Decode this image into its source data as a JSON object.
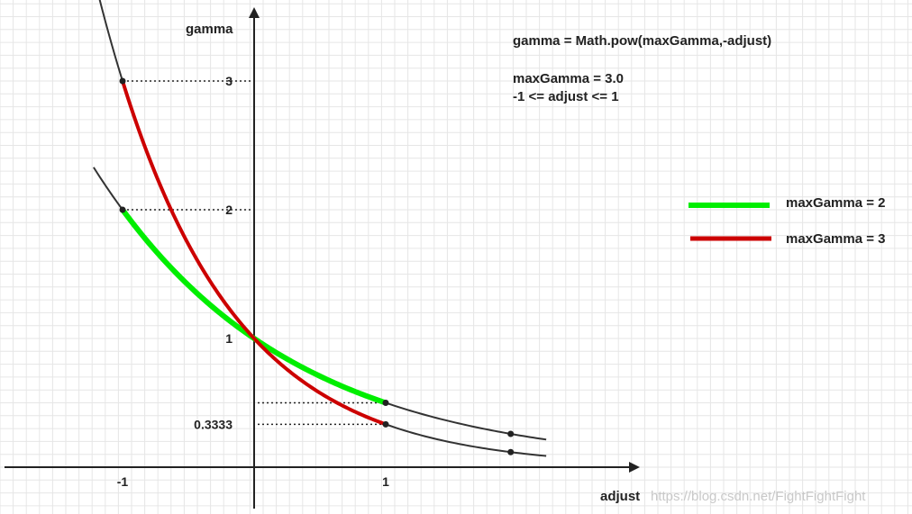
{
  "chart_data": {
    "type": "line",
    "xlabel": "adjust",
    "ylabel": "gamma",
    "xlim": [
      -1.9,
      3.0
    ],
    "ylim": [
      -0.05,
      3.45
    ],
    "x_ticks": [
      {
        "value": -1,
        "label": "-1"
      },
      {
        "value": 1,
        "label": "1"
      }
    ],
    "y_ticks": [
      {
        "value": 3,
        "label": "3"
      },
      {
        "value": 2,
        "label": "2"
      },
      {
        "value": 1,
        "label": "1"
      },
      {
        "value": 0.3333,
        "label": "0.3333"
      }
    ],
    "grid": true,
    "legend_position": "right",
    "annotations": [
      "gamma = Math.pow(maxGamma,-adjust)",
      "maxGamma = 3.0",
      "-1 <= adjust <= 1"
    ],
    "background_curves": [
      {
        "base": 2,
        "x_range": [
          -1.22,
          2.22
        ],
        "color": "#333333"
      },
      {
        "base": 3,
        "x_range": [
          -1.18,
          2.22
        ],
        "color": "#333333"
      }
    ],
    "series": [
      {
        "name": "maxGamma = 2",
        "color": "#00ee00",
        "x_range": [
          -1,
          1
        ],
        "base": 2,
        "points": [
          [
            -1,
            2
          ],
          [
            0,
            1
          ],
          [
            1,
            0.5
          ]
        ]
      },
      {
        "name": "maxGamma = 3",
        "color": "#cc0000",
        "x_range": [
          -1,
          1
        ],
        "base": 3,
        "points": [
          [
            -1,
            3
          ],
          [
            0,
            1
          ],
          [
            1,
            0.3333
          ]
        ]
      }
    ],
    "marker_points": [
      {
        "x": 1.95,
        "base": 2
      },
      {
        "x": 1.95,
        "base": 3
      }
    ],
    "watermark": "https://blog.csdn.net/FightFightFight"
  },
  "colors": {
    "grid": "#e6e6e6",
    "axis": "#222222",
    "curve": "#333333"
  }
}
